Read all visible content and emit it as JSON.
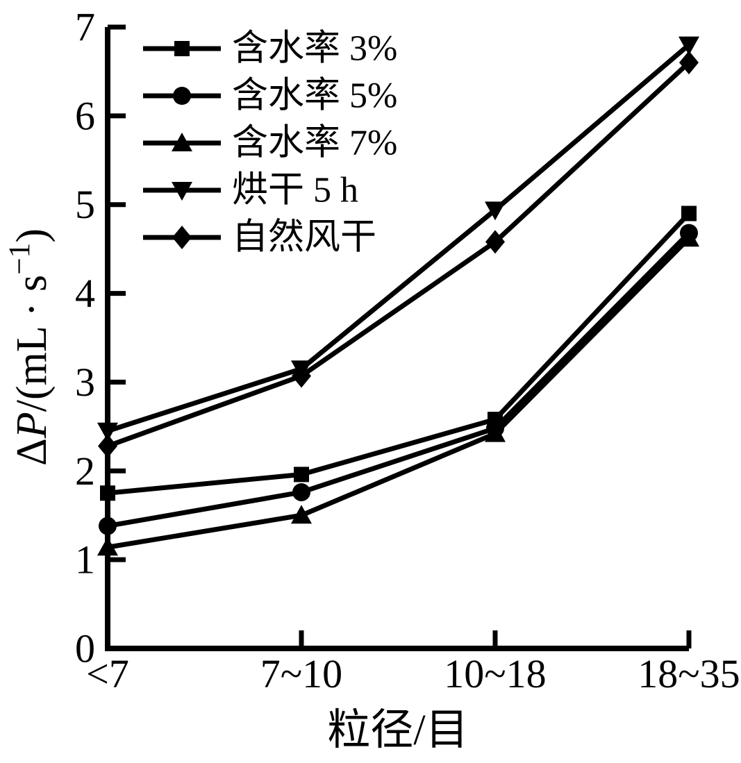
{
  "figure": {
    "background": "#ffffff",
    "ink_color": "#000000"
  },
  "chart_data": {
    "type": "line",
    "title": "",
    "categories": [
      "<7",
      "7~10",
      "10~18",
      "18~35"
    ],
    "series": [
      {
        "name": "含水率 3%",
        "marker": "square",
        "values": [
          1.75,
          1.96,
          2.58,
          4.9
        ]
      },
      {
        "name": "含水率 5%",
        "marker": "circle",
        "values": [
          1.38,
          1.76,
          2.48,
          4.68
        ]
      },
      {
        "name": "含水率 7%",
        "marker": "triangle-up",
        "values": [
          1.14,
          1.5,
          2.42,
          4.62
        ]
      },
      {
        "name": "烘干 5 h",
        "marker": "triangle-down",
        "values": [
          2.45,
          3.15,
          4.94,
          6.8
        ]
      },
      {
        "name": "自然风干",
        "marker": "diamond",
        "values": [
          2.28,
          3.07,
          4.58,
          6.6
        ]
      }
    ],
    "xlabel": "粒径/目",
    "ylabel": "ΔP/(mL · s⁻¹)",
    "ylabel_parts": [
      {
        "text": "Δ"
      },
      {
        "text": "P",
        "italic": true
      },
      {
        "text": "/(mL · s"
      },
      {
        "text": "−1",
        "sup": true
      },
      {
        "text": ")"
      }
    ],
    "ylim": [
      0,
      7
    ],
    "yticks": [
      0,
      1,
      2,
      3,
      4,
      5,
      6,
      7
    ],
    "grid": false,
    "legend_position": "top-left",
    "line_color": "#000000",
    "marker_color": "#000000"
  }
}
